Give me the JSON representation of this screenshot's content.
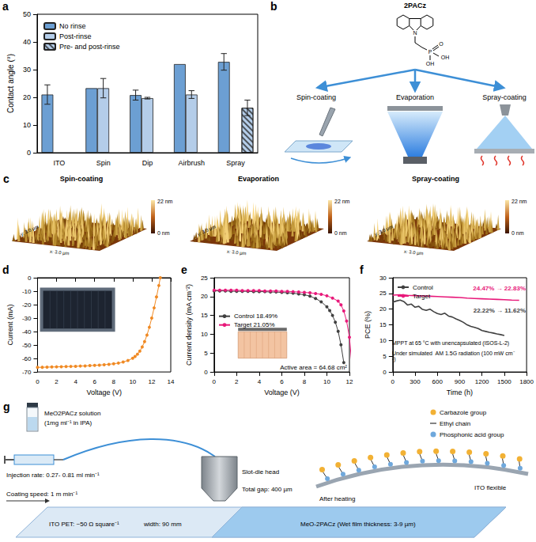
{
  "chart_data": [
    {
      "panel_label": "a",
      "type": "bar",
      "y_label": "Contact angle (°)",
      "categories": [
        "ITO",
        "Spin",
        "Dip",
        "Airbrush",
        "Spray"
      ],
      "series": [
        {
          "name": "No rinse",
          "color": "#6c9fd3",
          "values": [
            21,
            23.3,
            20.8,
            32,
            32.8
          ],
          "errors": [
            3.5,
            null,
            1.8,
            null,
            3
          ]
        },
        {
          "name": "Post-rinse",
          "color": "#b4cde9",
          "values": [
            null,
            23.3,
            19.7,
            21,
            null
          ],
          "errors": [
            null,
            3.5,
            0.3,
            1.4,
            null
          ]
        },
        {
          "name": "Pre- and post-rinse",
          "color": "#b4cde9",
          "marker": "hatch",
          "values": [
            null,
            null,
            null,
            null,
            16.2
          ],
          "errors": [
            null,
            null,
            null,
            null,
            2.8
          ]
        }
      ],
      "ylim": [
        0,
        50
      ],
      "yticks": [
        0,
        10,
        20,
        30,
        40,
        50
      ],
      "legend": "top-left"
    },
    {
      "panel_label": "d",
      "type": "line",
      "x_label": "Voltage (V)",
      "y_label": "Current (mA)",
      "series": [
        {
          "color": "#f08a24",
          "marker": "circle",
          "x": [
            0,
            0.5,
            1,
            1.5,
            2,
            2.5,
            3,
            3.5,
            4,
            4.5,
            5,
            5.5,
            6,
            6.5,
            7,
            7.5,
            8,
            8.5,
            9,
            9.5,
            10,
            10.25,
            10.5,
            10.75,
            11,
            11.25,
            11.5,
            11.75,
            12,
            12.25,
            12.5,
            12.75,
            12.9
          ],
          "values": [
            -66.6,
            -66.5,
            -66.4,
            -66.3,
            -66.2,
            -66.1,
            -66.0,
            -65.9,
            -65.8,
            -65.6,
            -65.5,
            -65.3,
            -65.1,
            -64.9,
            -64.6,
            -64.3,
            -63.9,
            -63.4,
            -62.6,
            -61.5,
            -59.8,
            -58.5,
            -56.8,
            -54.5,
            -51.4,
            -47.5,
            -42.6,
            -36.8,
            -30,
            -22.4,
            -14.3,
            -5.8,
            0
          ]
        }
      ],
      "xlim": [
        0,
        14
      ],
      "xticks": [
        0,
        2,
        4,
        6,
        8,
        10,
        12,
        14
      ],
      "ylim": [
        -70,
        0
      ],
      "yticks": [
        -70,
        -60,
        -50,
        -40,
        -30,
        -20,
        -10,
        0
      ]
    },
    {
      "panel_label": "e",
      "type": "line",
      "x_label": "Voltage (V)",
      "y_label": "Current density (mA cm⁻²)",
      "series": [
        {
          "name": "Control 18.49%",
          "color": "#404040",
          "marker": "circle",
          "x": [
            0,
            0.5,
            1,
            1.5,
            2,
            2.5,
            3,
            3.5,
            4,
            4.5,
            5,
            5.5,
            6,
            6.5,
            7,
            7.5,
            8,
            8.5,
            9,
            9.5,
            10,
            10.25,
            10.5,
            10.75,
            11,
            11.25,
            11.5
          ],
          "values": [
            21.5,
            21.5,
            21.5,
            21.4,
            21.4,
            21.4,
            21.4,
            21.3,
            21.3,
            21.3,
            21.2,
            21.2,
            21.1,
            21.0,
            20.9,
            20.7,
            20.5,
            20.1,
            19.5,
            18.6,
            17.3,
            16.3,
            15.0,
            13.2,
            10.8,
            7.2,
            2.5
          ]
        },
        {
          "name": "Target 21.05%",
          "color": "#e8197a",
          "marker": "circle",
          "x": [
            0,
            0.5,
            1,
            1.5,
            2,
            2.5,
            3,
            3.5,
            4,
            4.5,
            5,
            5.5,
            6,
            6.5,
            7,
            7.5,
            8,
            8.5,
            9,
            9.5,
            10,
            10.5,
            11,
            11.25,
            11.5,
            11.75,
            12,
            12.25
          ],
          "values": [
            21.7,
            21.7,
            21.7,
            21.7,
            21.7,
            21.6,
            21.6,
            21.6,
            21.6,
            21.5,
            21.5,
            21.5,
            21.4,
            21.4,
            21.3,
            21.2,
            21.1,
            21.0,
            20.8,
            20.6,
            20.2,
            19.6,
            18.8,
            17.8,
            16.2,
            13.5,
            9.2,
            0.8
          ]
        }
      ],
      "annotations": [
        {
          "text": "Active area = 64.68 cm²",
          "color": "#000000"
        }
      ],
      "xlim": [
        0,
        12
      ],
      "xticks": [
        0,
        2,
        4,
        6,
        8,
        10,
        12
      ],
      "ylim": [
        0,
        25
      ],
      "yticks": [
        0,
        5,
        10,
        15,
        20,
        25
      ],
      "legend": "left"
    },
    {
      "panel_label": "f",
      "type": "line",
      "x_label": "Time (h)",
      "y_label": "PCE (%)",
      "series": [
        {
          "name": "Control",
          "color": "#404040",
          "marker": "none",
          "x": [
            0,
            50,
            100,
            150,
            200,
            250,
            300,
            350,
            400,
            450,
            500,
            550,
            600,
            650,
            700,
            750,
            800,
            850,
            900,
            950,
            1000,
            1050,
            1100,
            1150,
            1200,
            1250,
            1300,
            1350,
            1400,
            1450,
            1500
          ],
          "values": [
            22.22,
            22.6,
            22.9,
            22.4,
            21.3,
            21.6,
            20.6,
            20.9,
            19.9,
            19.6,
            20.0,
            19.2,
            18.6,
            18.3,
            18.7,
            17.8,
            17.5,
            16.9,
            16.4,
            15.8,
            15.0,
            14.5,
            14.2,
            13.8,
            13.2,
            12.9,
            12.6,
            12.4,
            12.1,
            11.9,
            11.62
          ]
        },
        {
          "name": "Target",
          "color": "#e8197a",
          "marker": "none",
          "x": [
            0,
            100,
            200,
            300,
            400,
            500,
            600,
            700,
            800,
            900,
            1000,
            1100,
            1200,
            1300,
            1400,
            1500,
            1600,
            1700
          ],
          "values": [
            24.47,
            24.6,
            24.4,
            24.3,
            24.2,
            24.1,
            24.0,
            23.9,
            23.8,
            23.7,
            23.5,
            23.4,
            23.3,
            23.2,
            23.1,
            23.0,
            22.9,
            22.83
          ]
        }
      ],
      "annotations": [
        {
          "text": "24.47% → 22.83%",
          "color": "#e8197a"
        },
        {
          "text": "22.22% → 11.62%",
          "color": "#404040"
        },
        {
          "text": "MPPT at 65 °C with unencapsulated (ISOS-L-2)",
          "color": "#000000"
        },
        {
          "text": "Under simulated  AM 1.5G radiation (100 mW cm⁻²)",
          "color": "#000000"
        }
      ],
      "xlim": [
        0,
        1800
      ],
      "xticks": [
        0,
        300,
        600,
        900,
        1200,
        1500,
        1800
      ],
      "ylim": [
        0,
        30
      ],
      "yticks": [
        0,
        5,
        10,
        15,
        20,
        25,
        30
      ],
      "legend": "top-left"
    }
  ],
  "panel_b": {
    "panel_label": "b",
    "molecule": "2PACz",
    "atoms": [
      "N",
      "P",
      "O",
      "OH",
      "OH"
    ],
    "methods": [
      "Spin-coating",
      "Evaporation",
      "Spray-coating"
    ]
  },
  "panel_c": {
    "panel_label": "c",
    "images": [
      "Spin-coating",
      "Evaporation",
      "Spray-coating"
    ],
    "scale_max": "22 nm",
    "scale_min": "0 nm",
    "y_axis": "y: 3.0 µm",
    "x_axis": "x: 3.0 µm"
  },
  "panel_g": {
    "panel_label": "g",
    "solution": "MeO2PACz solution",
    "concentration": "(1mg ml⁻¹ in IPA)",
    "injection": "Injection rate: 0.27- 0.81 ml min⁻¹",
    "speed": "Coating speed: 1 m min⁻¹",
    "substrate": "ITO PET: ~50 Ω square⁻¹",
    "width": "width: 90 mm",
    "head": "Slot-die head",
    "gap": "Total gap: 400 µm",
    "film": "MeO-2PACz (Wet film thickness: 3-9 µm)",
    "heating": "After heating",
    "flexible": "ITO flexible",
    "groups": [
      "Carbazole group",
      "Ethyl chain",
      "Phosphonic acid group"
    ]
  }
}
